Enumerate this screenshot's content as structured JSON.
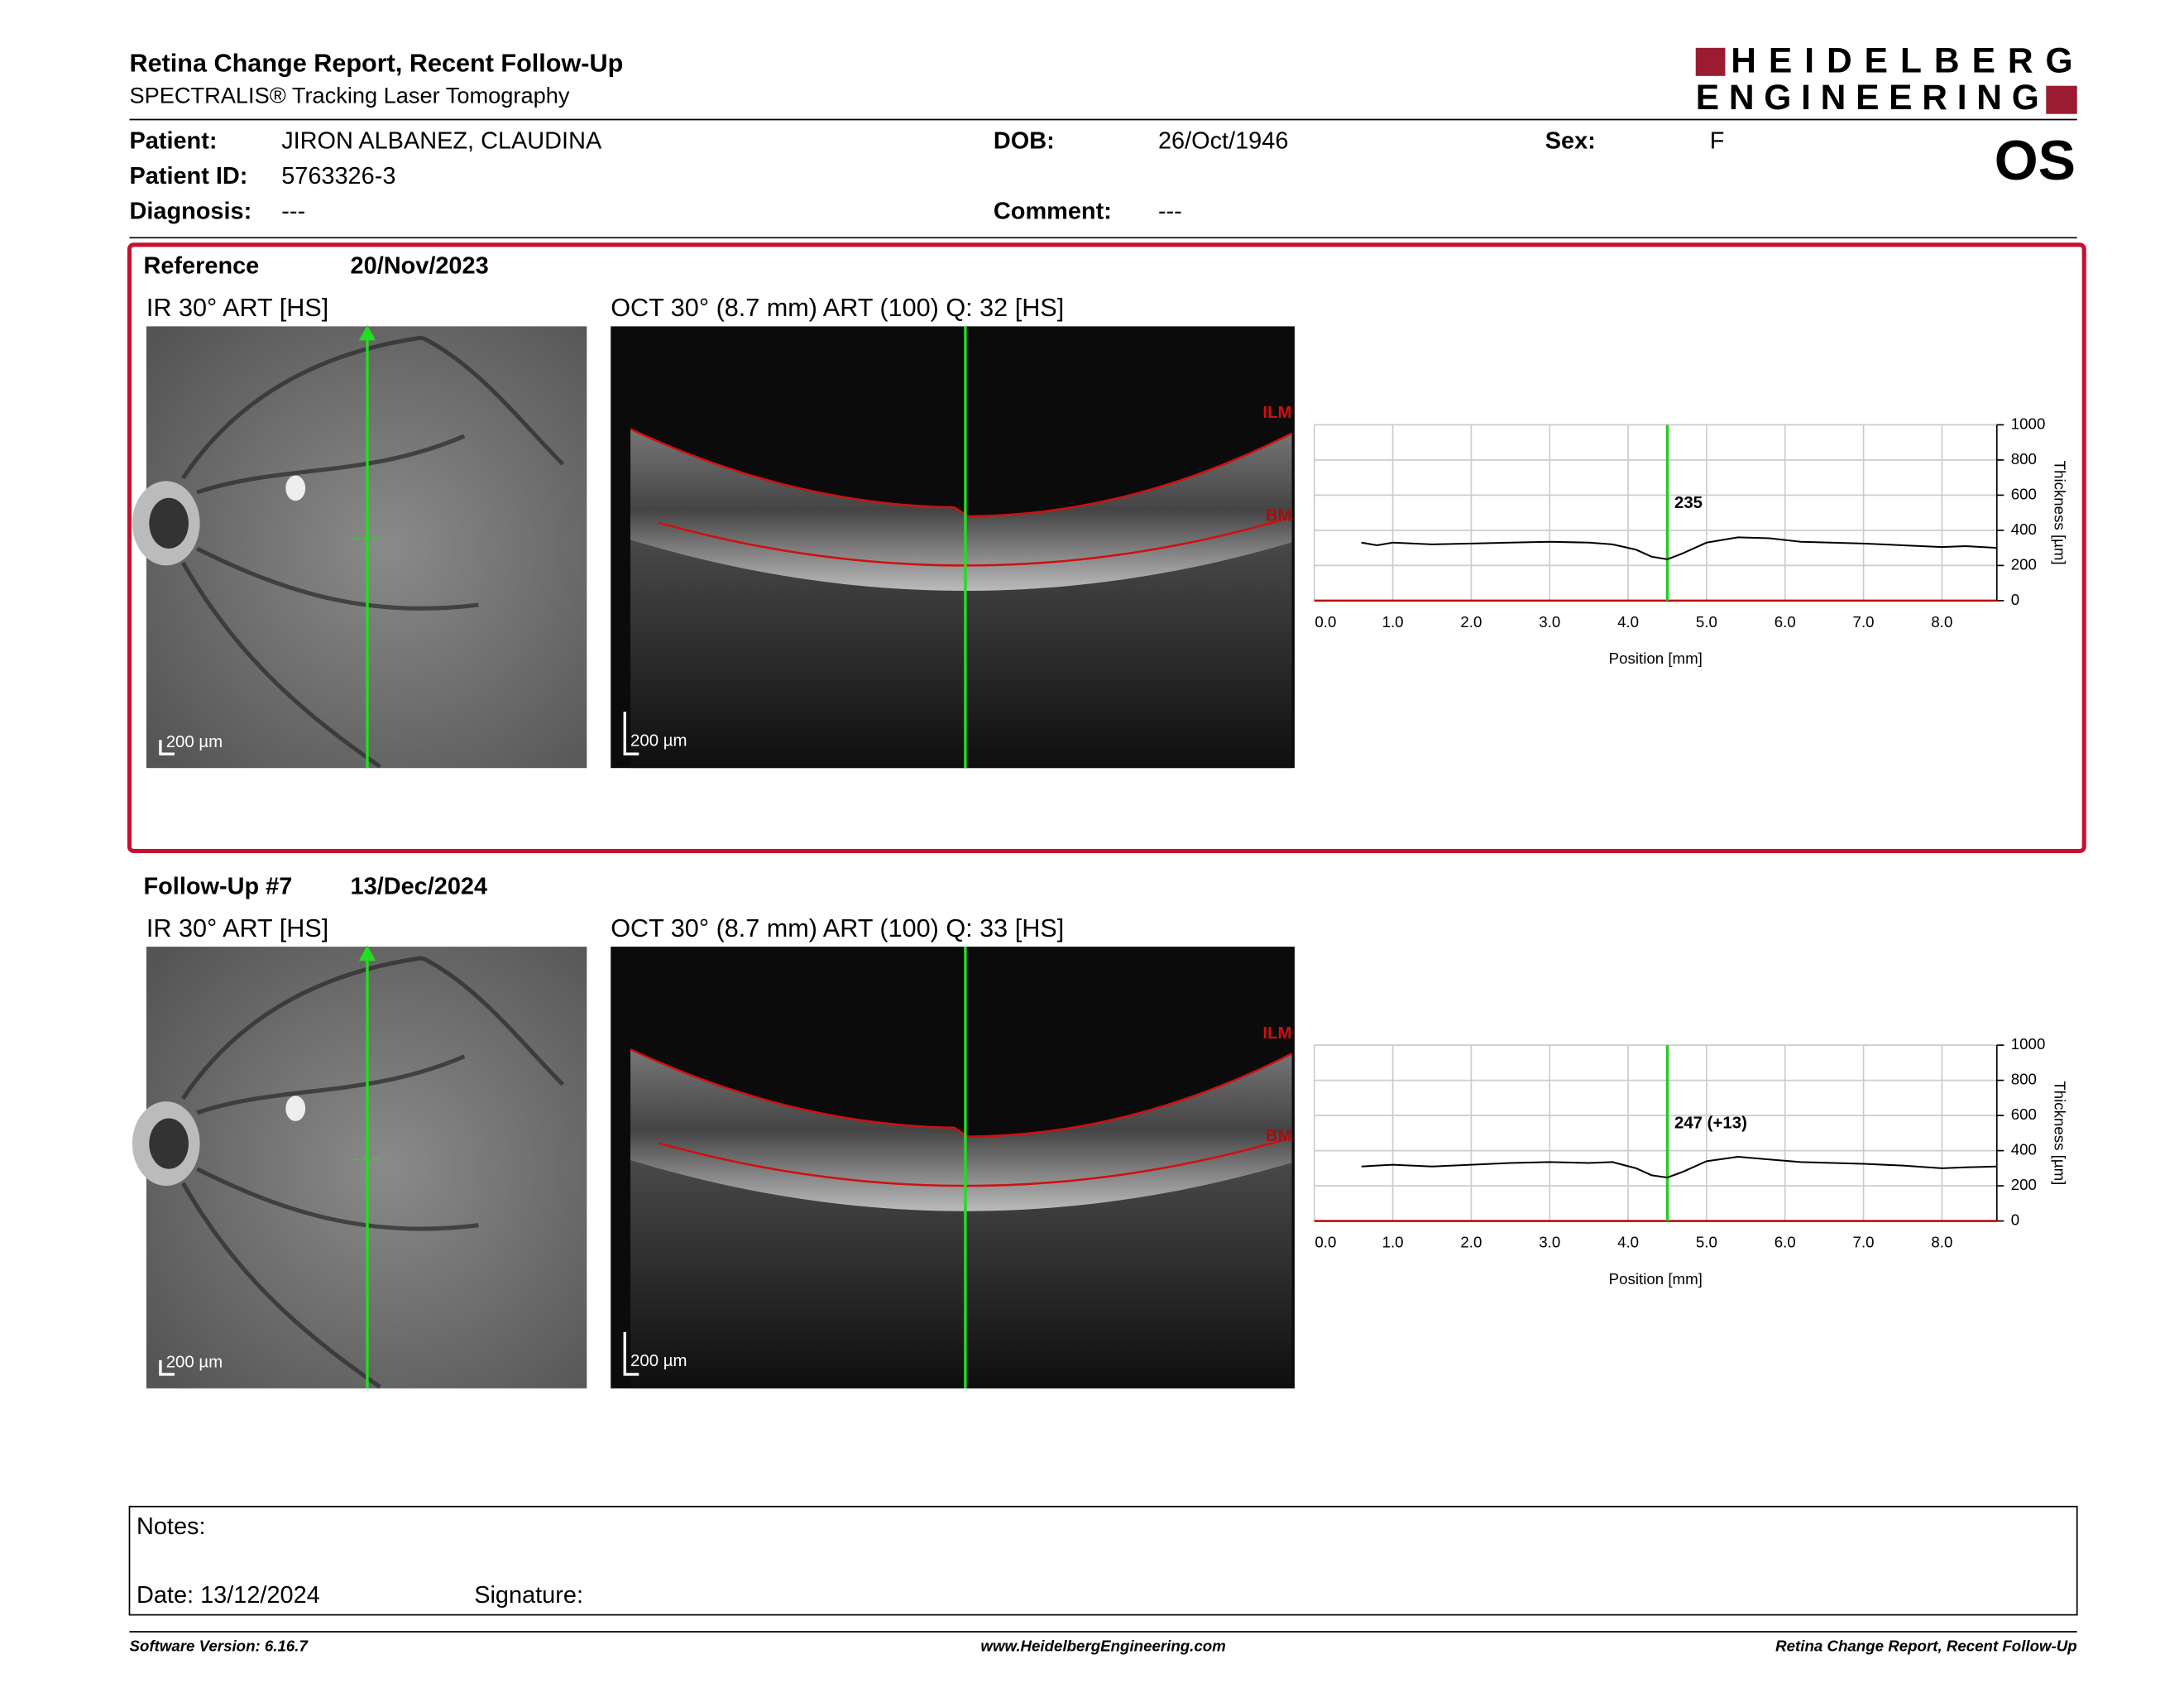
{
  "header": {
    "title": "Retina Change Report, Recent Follow-Up",
    "subtitle": "SPECTRALIS® Tracking Laser Tomography",
    "logo": [
      "HEIDELBERG",
      "ENGINEERING"
    ],
    "eye": "OS"
  },
  "patient": [
    {
      "label": "Patient:",
      "value": "JIRON ALBANEZ, CLAUDINA"
    },
    {
      "label": "DOB:",
      "value": "26/Oct/1946"
    },
    {
      "label": "Sex:",
      "value": "F"
    },
    {
      "label": "Patient ID:",
      "value": "5763326-3"
    },
    {
      "label": "Diagnosis:",
      "value": "---"
    },
    {
      "label": "Comment:",
      "value": "---"
    }
  ],
  "exams": [
    {
      "label": "Reference",
      "date": "20/Nov/2023",
      "ir_title": "IR 30° ART [HS]",
      "oct_title": "OCT 30° (8.7 mm) ART (100) Q: 32 [HS]",
      "ir_scale": "200 µm",
      "oct_scale": "200 µm",
      "layers": [
        "ILM",
        "BM"
      ],
      "chart": {
        "type": "line",
        "xlabel": "Position [mm]",
        "ylabel": "Thickness [µm]",
        "xlim": [
          0,
          8.7
        ],
        "ylim": [
          0,
          1000
        ],
        "xticks": [
          {
            "value": 0,
            "label": "0.0"
          },
          {
            "value": 1,
            "label": "1.0"
          },
          {
            "value": 2,
            "label": "2.0"
          },
          {
            "value": 3,
            "label": "3.0"
          },
          {
            "value": 4,
            "label": "4.0"
          },
          {
            "value": 5,
            "label": "5.0"
          },
          {
            "value": 6,
            "label": "6.0"
          },
          {
            "value": 7,
            "label": "7.0"
          },
          {
            "value": 8,
            "label": "8.0"
          }
        ],
        "yticks": [
          0,
          200,
          400,
          600,
          800,
          1000
        ],
        "x": [
          0.6,
          0.8,
          1.0,
          1.5,
          2.0,
          2.5,
          3.0,
          3.5,
          3.8,
          4.1,
          4.3,
          4.5,
          4.7,
          5.0,
          5.4,
          5.8,
          6.2,
          7.0,
          7.5,
          8.0,
          8.3,
          8.7
        ],
        "values": [
          330,
          315,
          330,
          320,
          325,
          330,
          335,
          330,
          320,
          290,
          250,
          235,
          270,
          330,
          360,
          355,
          335,
          325,
          315,
          305,
          310,
          300
        ],
        "color": "#000000",
        "marker_x": 4.5,
        "marker_label": "235",
        "marker_color": "#22cc22",
        "baseline_color": "#c00000"
      }
    },
    {
      "label": "Follow-Up #7",
      "date": "13/Dec/2024",
      "ir_title": "IR 30° ART [HS]",
      "oct_title": "OCT 30° (8.7 mm) ART (100) Q: 33 [HS]",
      "ir_scale": "200 µm",
      "oct_scale": "200 µm",
      "layers": [
        "ILM",
        "BM"
      ],
      "chart": {
        "type": "line",
        "xlabel": "Position [mm]",
        "ylabel": "Thickness [µm]",
        "xlim": [
          0,
          8.7
        ],
        "ylim": [
          0,
          1000
        ],
        "xticks": [
          {
            "value": 0,
            "label": "0.0"
          },
          {
            "value": 1,
            "label": "1.0"
          },
          {
            "value": 2,
            "label": "2.0"
          },
          {
            "value": 3,
            "label": "3.0"
          },
          {
            "value": 4,
            "label": "4.0"
          },
          {
            "value": 5,
            "label": "5.0"
          },
          {
            "value": 6,
            "label": "6.0"
          },
          {
            "value": 7,
            "label": "7.0"
          },
          {
            "value": 8,
            "label": "8.0"
          }
        ],
        "yticks": [
          0,
          200,
          400,
          600,
          800,
          1000
        ],
        "x": [
          0.6,
          0.8,
          1.0,
          1.5,
          2.0,
          2.5,
          3.0,
          3.5,
          3.8,
          4.1,
          4.3,
          4.5,
          4.7,
          5.0,
          5.4,
          5.8,
          6.2,
          7.0,
          7.5,
          8.0,
          8.3,
          8.7
        ],
        "values": [
          310,
          315,
          320,
          310,
          320,
          330,
          335,
          330,
          335,
          300,
          260,
          247,
          280,
          340,
          365,
          350,
          335,
          325,
          315,
          300,
          305,
          310
        ],
        "color": "#000000",
        "marker_x": 4.5,
        "marker_label": "247 (+13)",
        "marker_color": "#22cc22",
        "baseline_color": "#c00000"
      }
    }
  ],
  "notes": {
    "label": "Notes:",
    "date": "Date: 13/12/2024",
    "signature": "Signature:"
  },
  "footer": {
    "version": "Software Version: 6.16.7",
    "url": "www.HeidelbergEngineering.com",
    "report": "Retina Change Report, Recent Follow-Up"
  }
}
